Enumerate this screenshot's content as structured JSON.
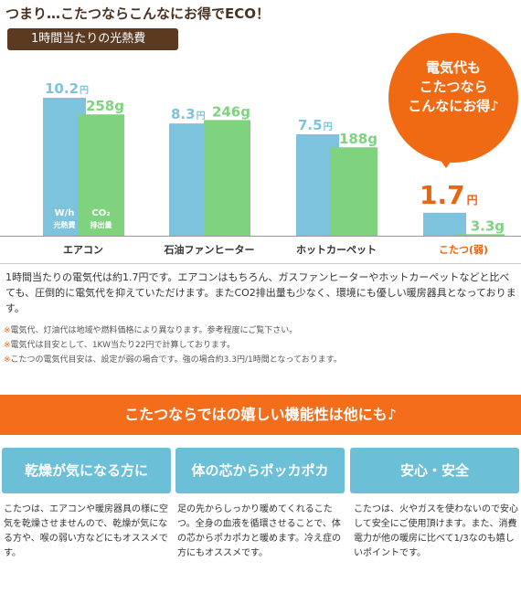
{
  "headline": "つまり…こたつならこんなにお得でECO！",
  "badge": "1時間当たりの光熱費",
  "bubble": {
    "lines": [
      "電気代も",
      "こたつなら",
      "こんなにお得♪"
    ]
  },
  "chart_data": {
    "type": "bar",
    "title": "1時間当たりの光熱費",
    "categories": [
      "エアコン",
      "石油ファンヒーター",
      "ホットカーペット",
      "こたつ(弱)"
    ],
    "series": [
      {
        "name": "W/h 光熱費",
        "unit": "円",
        "values": [
          10.2,
          8.3,
          7.5,
          1.7
        ]
      },
      {
        "name": "CO₂ 排出量",
        "unit": "g",
        "values": [
          258,
          246,
          188,
          3.3
        ]
      }
    ],
    "legend_labels": {
      "cost_top": "W/h",
      "cost_bottom": "光熱費",
      "co2_top": "CO₂",
      "co2_bottom": "排出量"
    },
    "cost_ylim": [
      0,
      10.2
    ],
    "co2_ylim": [
      0,
      340
    ],
    "colors": {
      "cost": "#7ec3de",
      "co2": "#7fd37f",
      "cost_label": "#7ec3de",
      "co2_label": "#7fd37f",
      "highlight_cost_label": "#ea6412",
      "highlight_category": "#ea6412",
      "category": "#333333"
    },
    "highlight_index": 3
  },
  "description": "1時間当たりの電気代は約1.7円です。エアコンはもちろん、ガスファンヒーターやホットカーペットなどと比べても、圧倒的に電気代を抑えていただけます。またCO2排出量も少なく、環境にも優しい暖房器具となっております。",
  "notes": [
    {
      "mark": "※",
      "text": "電気代、灯油代は地域や燃料価格により異なります。参考程度にご覧下さい。"
    },
    {
      "mark": "※",
      "text": "電気代は目安として、1KW当たり22円で計算しております。"
    },
    {
      "mark": "※",
      "text": "こたつの電気代目安は、設定が弱の場合です。強の場合約3.3円/1時間となっております。"
    }
  ],
  "banner": "こたつならではの嬉しい機能性は他にも♪",
  "features": [
    {
      "title": "乾燥が気になる方に",
      "text": "こたつは、エアコンや暖房器具の様に空気を乾燥させませんので、乾燥が気になる方や、喉の弱い方などにもオススメです。"
    },
    {
      "title": "体の芯からポッカポカ",
      "text": "足の先からしっかり暖めてくれるこたつ。全身の血液を循環させることで、体の芯からポカポカと暖めます。冷え症の方にもオススメです。"
    },
    {
      "title": "安心・安全",
      "text": "こたつは、火やガスを使わないので安心して安全にご使用頂けます。また、消費電力が他の暖房に比べて1/3なのも嬉しいポイントです。"
    }
  ]
}
